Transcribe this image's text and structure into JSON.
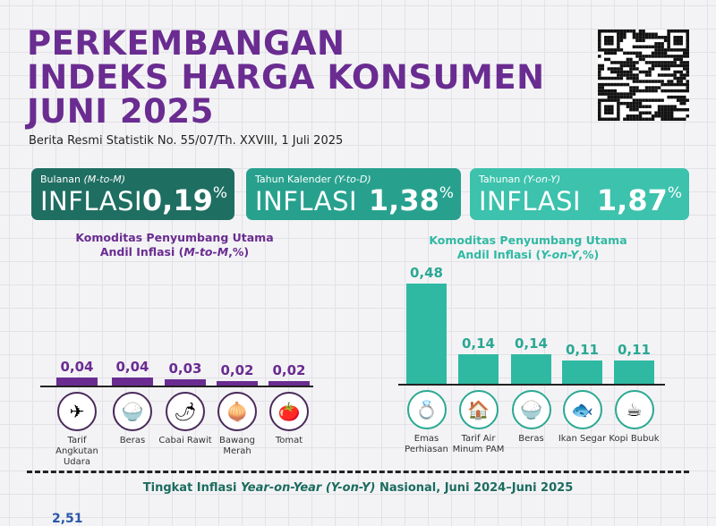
{
  "header": {
    "title_lines": [
      "PERKEMBANGAN",
      "INDEKS HARGA KONSUMEN",
      "JUNI 2025"
    ],
    "subtitle": "Berita Resmi Statistik No. 55/07/Th. XXVIII, 1 Juli 2025"
  },
  "cards": [
    {
      "label": "Bulanan",
      "label_em": "(M-to-M)",
      "word": "INFLASI",
      "value": "0,19",
      "unit": "%",
      "color": "#1f6e62"
    },
    {
      "label": "Tahun Kalender",
      "label_em": "(Y-to-D)",
      "word": "INFLASI",
      "value": "1,38",
      "unit": "%",
      "color": "#27a18e"
    },
    {
      "label": "Tahunan",
      "label_em": "(Y-on-Y)",
      "word": "INFLASI",
      "value": "1,87",
      "unit": "%",
      "color": "#3cc2ad"
    }
  ],
  "chart_data": [
    {
      "type": "bar",
      "title_line1": "Komoditas Penyumbang Utama",
      "title_line2_pre": "Andil Inflasi (",
      "title_line2_em": "M-to-M",
      "title_line2_post": ",%)",
      "color": "#6a2c91",
      "categories": [
        "Tarif Angkutan Udara",
        "Beras",
        "Cabai Rawit",
        "Bawang Merah",
        "Tomat"
      ],
      "labels": [
        "0,04",
        "0,04",
        "0,03",
        "0,02",
        "0,02"
      ],
      "values": [
        0.04,
        0.04,
        0.03,
        0.02,
        0.02
      ],
      "icons": [
        "airplane-icon",
        "rice-icon",
        "chili-icon",
        "shallot-icon",
        "tomato-icon"
      ]
    },
    {
      "type": "bar",
      "title_line1": "Komoditas Penyumbang Utama",
      "title_line2_pre": "Andil Inflasi (",
      "title_line2_em": "Y-on-Y",
      "title_line2_post": ",%)",
      "color": "#2fb9a3",
      "categories": [
        "Emas Perhiasan",
        "Tarif Air Minum PAM",
        "Beras",
        "Ikan Segar",
        "Kopi Bubuk"
      ],
      "labels": [
        "0,48",
        "0,14",
        "0,14",
        "0,11",
        "0,11"
      ],
      "values": [
        0.48,
        0.14,
        0.14,
        0.11,
        0.11
      ],
      "icons": [
        "gold-jewelry-icon",
        "water-tariff-icon",
        "rice-icon",
        "fish-icon",
        "coffee-icon"
      ]
    }
  ],
  "footer": {
    "title_pre": "Tingkat Inflasi ",
    "title_em": "Year-on-Year (Y-on-Y)",
    "title_post": " Nasional, Juni 2024–Juni 2025",
    "partial_value": "2,51"
  }
}
